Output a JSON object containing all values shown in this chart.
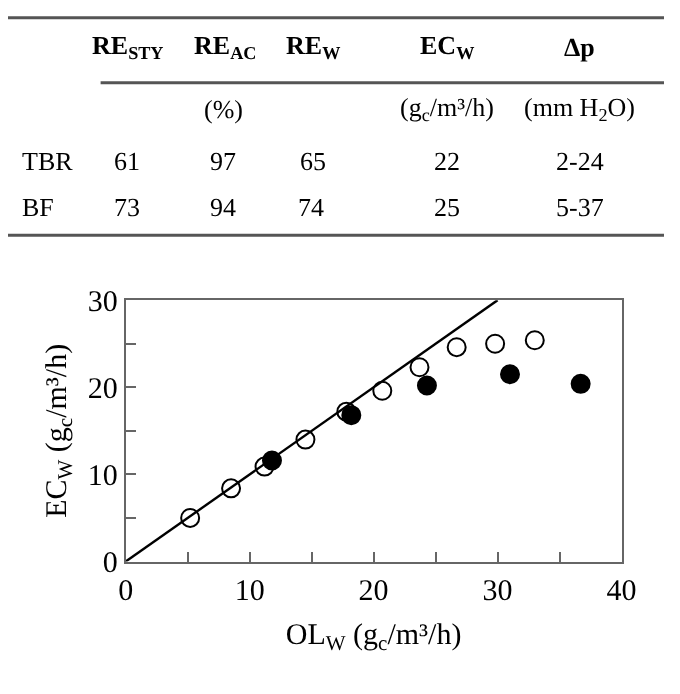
{
  "chart_data": [
    {
      "type": "other",
      "annotations": [
        "RE$_{STY}$",
        "RE$_{AC}$",
        "RE$_{W}$",
        "EC$_{W}$",
        "Δp",
        "(%)",
        "(g$_{c}$/m³/h)",
        "(mm H$_{2}$O)",
        "TBR",
        "61",
        "97",
        "65",
        "22",
        "2-24",
        "BF",
        "73",
        "94",
        "74",
        "25",
        "5-37"
      ]
    },
    {
      "type": "scatter",
      "xlabel": "OL$_{W}$ (g$_{c}$/m³/h)",
      "ylabel": "EC$_{W}$ (g$_{c}$/m³/h)",
      "xlim": [
        0,
        40
      ],
      "ylim": [
        0,
        30
      ],
      "xticks": [
        0,
        {
          "value": 5,
          "label": null
        },
        10,
        {
          "value": 15,
          "label": null
        },
        20,
        {
          "value": 25,
          "label": null
        },
        30,
        {
          "value": 35,
          "label": null
        },
        40
      ],
      "yticks": [
        0,
        {
          "value": 5,
          "label": null
        },
        10,
        {
          "value": 15,
          "label": null
        },
        20,
        {
          "value": 25,
          "label": null
        },
        30
      ],
      "marker": "circle",
      "series": [
        {
          "x": [
            5.2,
            8.5,
            11.2,
            14.5,
            17.8,
            20.7,
            23.7,
            26.7,
            29.8,
            33.0
          ],
          "values": [
            5.0,
            8.4,
            10.9,
            14.0,
            17.2,
            19.6,
            22.3,
            24.6,
            25.0,
            25.4
          ],
          "color": "#ffffff"
        },
        {
          "x": [
            11.8,
            18.2,
            24.3,
            31.0,
            36.7
          ],
          "values": [
            11.6,
            16.8,
            20.2,
            21.5,
            20.4
          ],
          "color": "#000000"
        },
        {
          "type": "line",
          "x": [
            0,
            30
          ],
          "values": [
            0,
            30
          ],
          "color": "#000000",
          "marker": "none"
        }
      ]
    }
  ]
}
